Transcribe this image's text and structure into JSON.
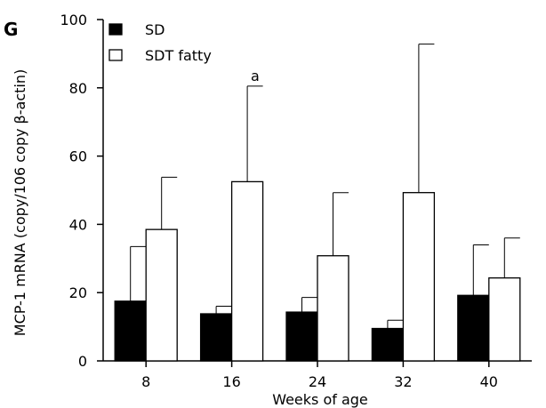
{
  "panel_label": "G",
  "chart_data": {
    "type": "bar",
    "title": "",
    "xlabel": "Weeks of age",
    "ylabel": "MCP-1 mRNA (copy/106 copy β-actin)",
    "ylim": [
      0,
      100
    ],
    "yticks": [
      "0",
      "20",
      "40",
      "60",
      "80",
      "100"
    ],
    "categories": [
      "8",
      "16",
      "24",
      "32",
      "40"
    ],
    "series": [
      {
        "name": "SD",
        "color": "#000000",
        "values": [
          17.5,
          13.8,
          14.3,
          9.5,
          19.2
        ],
        "errors": [
          16.0,
          2.2,
          4.3,
          2.4,
          14.8
        ]
      },
      {
        "name": "SDT fatty",
        "color": "#ffffff",
        "values": [
          38.5,
          52.5,
          30.8,
          49.3,
          24.3
        ],
        "errors": [
          15.3,
          28.0,
          18.5,
          43.5,
          11.7
        ]
      }
    ],
    "annotations": [
      {
        "text": "a",
        "category": "16",
        "series": "SDT fatty"
      }
    ],
    "legend_position": "top-left",
    "grid": false
  }
}
